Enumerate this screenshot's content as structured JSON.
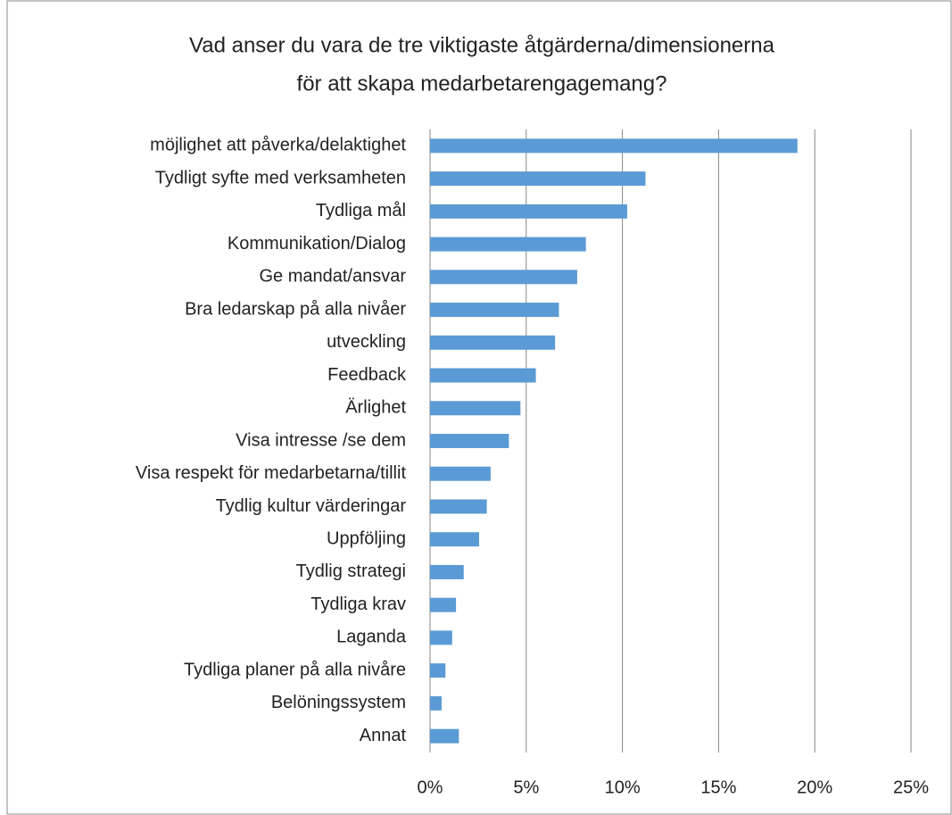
{
  "chart_data": {
    "type": "barh",
    "title": [
      "Vad anser du vara de tre viktigaste åtgärderna/dimensionerna",
      "för att skapa medarbetarengagemang?"
    ],
    "categories": [
      "möjlighet att påverka/delaktighet",
      "Tydligt syfte med verksamheten",
      "Tydliga mål",
      "Kommunikation/Dialog",
      "Ge mandat/ansvar",
      "Bra ledarskap på alla nivåer",
      "utveckling",
      "Feedback",
      "Ärlighet",
      "Visa intresse /se dem",
      "Visa respekt för medarbetarna/tillit",
      "Tydlig kultur värderingar",
      "Uppföljing",
      "Tydlig strategi",
      "Tydliga krav",
      "Laganda",
      "Tydliga planer på alla nivåre",
      "Belöningssystem",
      "Annat"
    ],
    "values": [
      19.1,
      11.2,
      10.25,
      8.1,
      7.65,
      6.7,
      6.5,
      5.5,
      4.7,
      4.1,
      3.15,
      2.95,
      2.55,
      1.75,
      1.35,
      1.15,
      0.8,
      0.6,
      1.5
    ],
    "color": "#5b9bd5",
    "xlim": [
      0,
      25
    ],
    "xticks": [
      {
        "value": 0,
        "label": "0%"
      },
      {
        "value": 5,
        "label": "5%"
      },
      {
        "value": 10,
        "label": "10%"
      },
      {
        "value": 15,
        "label": "15%"
      },
      {
        "value": 20,
        "label": "20%"
      },
      {
        "value": 25,
        "label": "25%"
      }
    ],
    "grid": true
  }
}
